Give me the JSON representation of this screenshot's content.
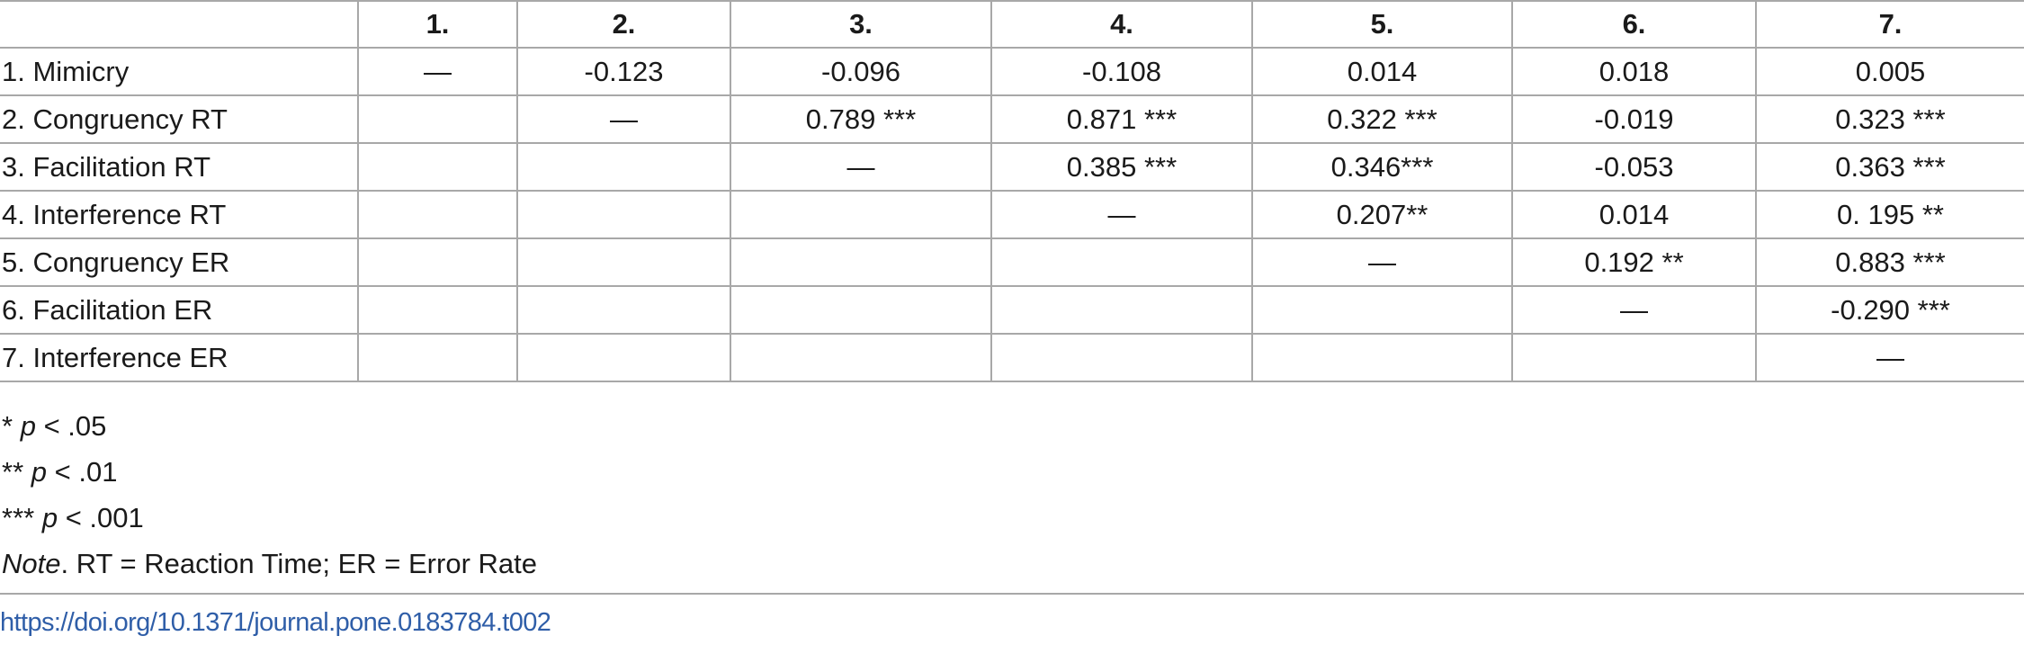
{
  "table": {
    "headers": [
      "",
      "1.",
      "2.",
      "3.",
      "4.",
      "5.",
      "6.",
      "7."
    ],
    "rows": [
      [
        "1. Mimicry",
        "—",
        "-0.123",
        "-0.096",
        "-0.108",
        "0.014",
        "0.018",
        "0.005"
      ],
      [
        "2. Congruency RT",
        "",
        "—",
        "0.789 ***",
        "0.871 ***",
        "0.322 ***",
        "-0.019",
        "0.323 ***"
      ],
      [
        "3. Facilitation RT",
        "",
        "",
        "—",
        "0.385 ***",
        "0.346***",
        "-0.053",
        "0.363 ***"
      ],
      [
        "4. Interference RT",
        "",
        "",
        "",
        "—",
        "0.207**",
        "0.014",
        "0. 195 **"
      ],
      [
        "5. Congruency ER",
        "",
        "",
        "",
        "",
        "—",
        "0.192 **",
        "0.883 ***"
      ],
      [
        "6. Facilitation ER",
        "",
        "",
        "",
        "",
        "",
        "—",
        "-0.290 ***"
      ],
      [
        "7. Interference ER",
        "",
        "",
        "",
        "",
        "",
        "",
        "—"
      ]
    ]
  },
  "notes": {
    "sig1_stars": "*",
    "sig1_p": "p",
    "sig1_rest": "< .05",
    "sig2_stars": "**",
    "sig2_p": "p",
    "sig2_rest": "< .01",
    "sig3_stars": "***",
    "sig3_p": "p",
    "sig3_rest": "< .001",
    "note_label": "Note",
    "note_text": ". RT = Reaction Time; ER = Error Rate"
  },
  "doi": "https://doi.org/10.1371/journal.pone.0183784.t002"
}
